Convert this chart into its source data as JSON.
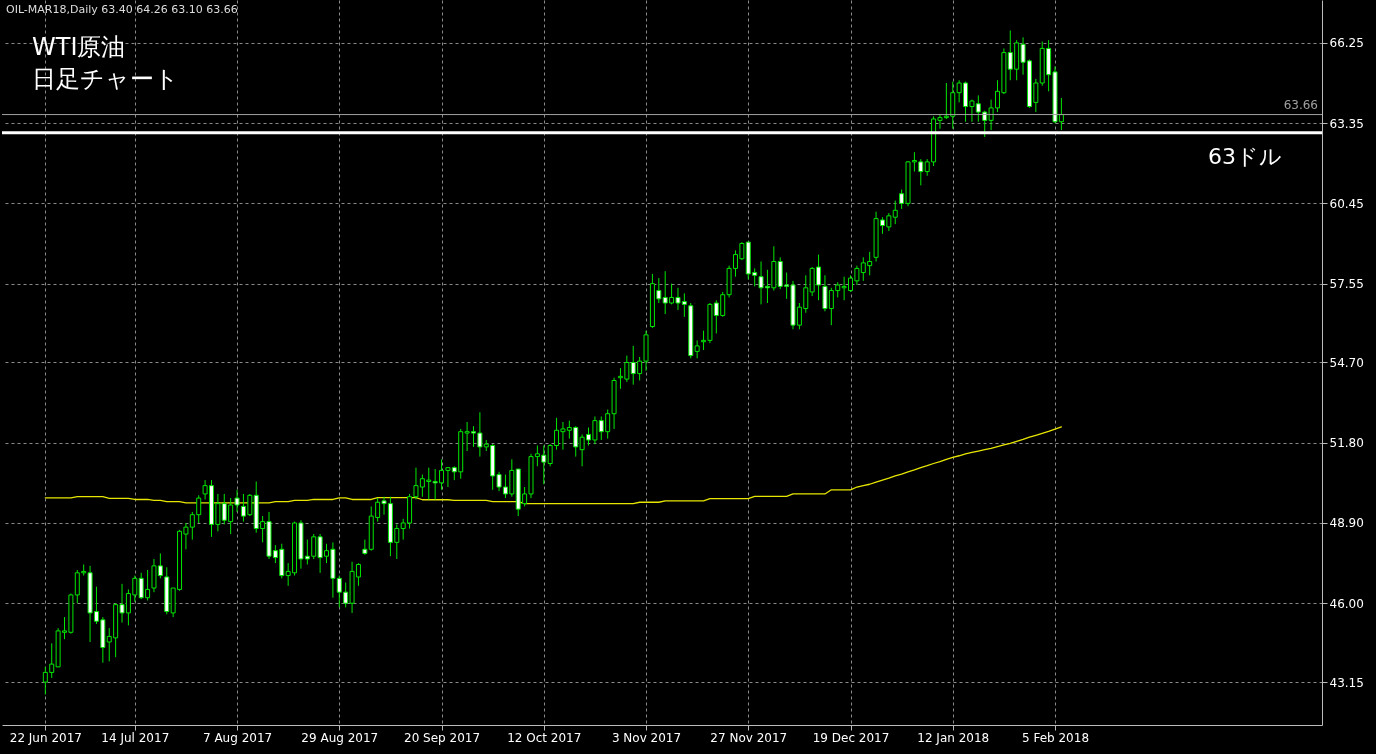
{
  "chart_data": {
    "type": "candlestick",
    "title": "WTI原油",
    "subtitle": "日足チャート",
    "annotations": [
      "OIL-MAR18,Daily 63.40 64.26 63.10 63.66"
    ],
    "color": "#00e600",
    "categories": [
      "22 Jun 2017",
      null,
      null,
      null,
      null,
      null,
      null,
      null,
      null,
      null,
      null,
      null,
      null,
      null,
      "14 Jul 2017",
      null,
      null,
      null,
      null,
      null,
      null,
      null,
      null,
      null,
      null,
      null,
      null,
      null,
      null,
      null,
      "7 Aug 2017",
      null,
      null,
      null,
      null,
      null,
      null,
      null,
      null,
      null,
      null,
      null,
      null,
      null,
      null,
      null,
      "29 Aug 2017",
      null,
      null,
      null,
      null,
      null,
      null,
      null,
      null,
      null,
      null,
      null,
      null,
      null,
      null,
      null,
      "20 Sep 2017",
      null,
      null,
      null,
      null,
      null,
      null,
      null,
      null,
      null,
      null,
      null,
      null,
      null,
      null,
      null,
      "12 Oct 2017",
      null,
      null,
      null,
      null,
      null,
      null,
      null,
      null,
      null,
      null,
      null,
      null,
      null,
      null,
      null,
      "3 Nov 2017",
      null,
      null,
      null,
      null,
      null,
      null,
      null,
      null,
      null,
      null,
      null,
      null,
      null,
      null,
      null,
      "27 Nov 2017",
      null,
      null,
      null,
      null,
      null,
      null,
      null,
      null,
      null,
      null,
      null,
      null,
      null,
      null,
      null,
      "19 Dec 2017",
      null,
      null,
      null,
      null,
      null,
      null,
      null,
      null,
      null,
      null,
      null,
      null,
      null,
      null,
      null,
      "12 Jan 2018",
      null,
      null,
      null,
      null,
      null,
      null,
      null,
      null,
      null,
      null,
      null,
      null,
      null,
      null,
      null,
      "5 Feb 2018",
      null
    ],
    "ohlc": [
      [
        43.15,
        43.7,
        42.7,
        43.5
      ],
      [
        43.5,
        44.55,
        43.3,
        43.8
      ],
      [
        43.7,
        45.1,
        43.7,
        45.0
      ],
      [
        44.95,
        45.5,
        44.7,
        45.0
      ],
      [
        44.95,
        46.35,
        44.9,
        46.3
      ],
      [
        46.3,
        47.2,
        46.0,
        47.1
      ],
      [
        47.1,
        47.4,
        47.0,
        47.15
      ],
      [
        47.1,
        47.35,
        44.6,
        45.65
      ],
      [
        45.7,
        46.6,
        45.25,
        45.35
      ],
      [
        45.4,
        45.5,
        43.85,
        44.4
      ],
      [
        44.6,
        45.1,
        43.9,
        44.8
      ],
      [
        44.75,
        46.0,
        44.05,
        45.95
      ],
      [
        45.95,
        46.7,
        45.3,
        45.65
      ],
      [
        45.65,
        46.5,
        45.2,
        46.35
      ],
      [
        46.3,
        47.0,
        46.05,
        46.9
      ],
      [
        46.9,
        47.1,
        46.15,
        46.2
      ],
      [
        46.2,
        47.2,
        46.1,
        46.5
      ],
      [
        46.55,
        47.6,
        46.4,
        47.35
      ],
      [
        47.35,
        47.8,
        46.9,
        47.0
      ],
      [
        46.95,
        47.3,
        45.6,
        45.7
      ],
      [
        45.65,
        46.55,
        45.5,
        46.55
      ],
      [
        46.5,
        48.65,
        46.45,
        48.6
      ],
      [
        48.5,
        48.9,
        47.95,
        48.75
      ],
      [
        48.75,
        49.3,
        48.3,
        49.2
      ],
      [
        49.2,
        49.9,
        48.9,
        49.8
      ],
      [
        49.95,
        50.45,
        49.75,
        50.25
      ],
      [
        50.25,
        50.45,
        48.4,
        48.85
      ],
      [
        48.85,
        49.95,
        48.6,
        49.6
      ],
      [
        49.6,
        49.95,
        48.85,
        49.0
      ],
      [
        48.95,
        49.8,
        48.5,
        49.55
      ],
      [
        49.8,
        50.1,
        49.3,
        49.55
      ],
      [
        49.5,
        49.95,
        48.95,
        49.15
      ],
      [
        49.2,
        49.95,
        49.15,
        49.9
      ],
      [
        49.9,
        50.4,
        48.55,
        48.7
      ],
      [
        48.7,
        49.15,
        48.2,
        48.95
      ],
      [
        48.95,
        49.3,
        47.6,
        47.7
      ],
      [
        47.9,
        48.1,
        47.45,
        47.65
      ],
      [
        47.95,
        48.15,
        46.9,
        47.0
      ],
      [
        47.0,
        47.45,
        46.63,
        47.15
      ],
      [
        47.1,
        48.95,
        47.0,
        48.9
      ],
      [
        48.9,
        49.0,
        47.25,
        47.6
      ],
      [
        47.7,
        48.3,
        47.4,
        47.6
      ],
      [
        47.7,
        48.5,
        47.6,
        48.4
      ],
      [
        48.4,
        48.5,
        47.1,
        47.65
      ],
      [
        47.7,
        48.15,
        47.45,
        47.9
      ],
      [
        47.95,
        48.2,
        46.2,
        46.9
      ],
      [
        46.9,
        47.0,
        45.85,
        46.4
      ],
      [
        46.4,
        46.75,
        45.85,
        46.0
      ],
      [
        46.0,
        47.5,
        45.65,
        47.15
      ],
      [
        46.95,
        47.45,
        46.63,
        47.4
      ],
      [
        47.95,
        48.3,
        47.75,
        47.8
      ],
      [
        47.95,
        49.5,
        47.9,
        49.15
      ],
      [
        49.1,
        49.8,
        48.95,
        49.65
      ],
      [
        49.7,
        49.85,
        49.2,
        49.6
      ],
      [
        49.6,
        49.85,
        47.7,
        48.2
      ],
      [
        48.2,
        48.85,
        47.6,
        48.7
      ],
      [
        48.7,
        49.05,
        48.3,
        48.9
      ],
      [
        48.9,
        49.95,
        48.7,
        49.85
      ],
      [
        49.85,
        50.9,
        49.75,
        50.25
      ],
      [
        50.2,
        50.65,
        49.85,
        50.5
      ],
      [
        50.4,
        50.9,
        49.75,
        50.45
      ],
      [
        50.4,
        50.85,
        49.75,
        50.35
      ],
      [
        50.35,
        51.2,
        50.1,
        50.8
      ],
      [
        50.8,
        50.9,
        50.2,
        50.9
      ],
      [
        50.9,
        50.95,
        50.45,
        50.75
      ],
      [
        50.75,
        52.3,
        50.5,
        52.2
      ],
      [
        52.15,
        52.55,
        51.5,
        52.2
      ],
      [
        52.2,
        52.4,
        51.65,
        52.15
      ],
      [
        52.15,
        52.9,
        51.3,
        51.65
      ],
      [
        51.65,
        51.9,
        51.5,
        51.75
      ],
      [
        51.7,
        51.75,
        50.1,
        50.6
      ],
      [
        50.65,
        50.75,
        50.05,
        50.2
      ],
      [
        50.2,
        50.65,
        49.8,
        49.95
      ],
      [
        49.95,
        51.2,
        49.85,
        50.8
      ],
      [
        50.85,
        50.85,
        49.15,
        49.4
      ],
      [
        49.6,
        50.2,
        49.5,
        49.95
      ],
      [
        49.95,
        51.4,
        49.8,
        51.3
      ],
      [
        51.3,
        51.7,
        50.95,
        51.4
      ],
      [
        51.35,
        51.7,
        50.3,
        51.1
      ],
      [
        51.05,
        51.75,
        50.95,
        51.7
      ],
      [
        51.7,
        52.7,
        51.55,
        52.25
      ],
      [
        52.2,
        52.55,
        51.55,
        52.3
      ],
      [
        52.25,
        52.6,
        51.95,
        52.35
      ],
      [
        52.35,
        52.4,
        51.3,
        51.65
      ],
      [
        51.55,
        52.1,
        50.95,
        52.0
      ],
      [
        52.1,
        52.35,
        51.7,
        51.9
      ],
      [
        51.9,
        52.75,
        51.75,
        52.6
      ],
      [
        52.6,
        52.75,
        51.9,
        52.2
      ],
      [
        52.2,
        53.0,
        51.95,
        52.85
      ],
      [
        52.85,
        54.15,
        52.3,
        54.05
      ],
      [
        54.15,
        54.5,
        53.75,
        54.2
      ],
      [
        54.1,
        54.95,
        54.0,
        54.7
      ],
      [
        54.7,
        55.3,
        53.9,
        54.3
      ],
      [
        54.3,
        54.9,
        54.05,
        54.75
      ],
      [
        54.75,
        55.85,
        54.4,
        55.7
      ],
      [
        56.0,
        57.9,
        55.95,
        57.55
      ],
      [
        57.3,
        57.75,
        56.85,
        57.0
      ],
      [
        57.05,
        58.0,
        56.45,
        56.85
      ],
      [
        56.85,
        57.55,
        56.8,
        57.05
      ],
      [
        57.05,
        57.4,
        56.6,
        56.85
      ],
      [
        56.9,
        57.2,
        56.35,
        56.8
      ],
      [
        56.75,
        56.85,
        54.85,
        54.95
      ],
      [
        55.1,
        55.5,
        54.85,
        55.3
      ],
      [
        55.45,
        55.85,
        55.15,
        55.5
      ],
      [
        55.5,
        56.85,
        55.4,
        56.8
      ],
      [
        56.85,
        56.95,
        55.75,
        56.4
      ],
      [
        56.4,
        57.25,
        56.35,
        57.15
      ],
      [
        57.15,
        58.2,
        57.05,
        58.1
      ],
      [
        58.1,
        58.75,
        57.8,
        58.6
      ],
      [
        58.45,
        59.05,
        58.4,
        59.0
      ],
      [
        59.05,
        59.05,
        57.7,
        57.9
      ],
      [
        57.95,
        58.1,
        57.45,
        57.85
      ],
      [
        57.8,
        58.35,
        56.8,
        57.4
      ],
      [
        57.45,
        58.05,
        56.85,
        57.4
      ],
      [
        57.4,
        58.9,
        57.3,
        58.35
      ],
      [
        58.35,
        58.5,
        57.35,
        57.45
      ],
      [
        57.5,
        57.95,
        57.0,
        57.45
      ],
      [
        57.5,
        57.65,
        55.9,
        56.05
      ],
      [
        56.05,
        56.85,
        55.9,
        56.7
      ],
      [
        56.65,
        57.85,
        56.5,
        57.4
      ],
      [
        57.25,
        58.15,
        57.1,
        58.1
      ],
      [
        58.15,
        58.6,
        56.95,
        57.5
      ],
      [
        57.45,
        57.85,
        56.55,
        56.65
      ],
      [
        56.65,
        57.4,
        56.05,
        57.3
      ],
      [
        57.3,
        57.6,
        57.05,
        57.5
      ],
      [
        57.4,
        57.8,
        56.95,
        57.45
      ],
      [
        57.3,
        57.85,
        57.25,
        57.75
      ],
      [
        57.65,
        58.2,
        57.5,
        58.1
      ],
      [
        57.95,
        58.5,
        57.65,
        58.3
      ],
      [
        58.2,
        58.7,
        57.85,
        58.35
      ],
      [
        58.5,
        60.15,
        58.35,
        59.9
      ],
      [
        59.85,
        59.95,
        59.35,
        59.65
      ],
      [
        59.6,
        60.1,
        59.45,
        60.0
      ],
      [
        59.95,
        60.55,
        59.7,
        60.2
      ],
      [
        60.8,
        60.95,
        60.25,
        60.45
      ],
      [
        60.45,
        61.98,
        60.35,
        61.95
      ],
      [
        61.95,
        62.3,
        61.6,
        62.0
      ],
      [
        61.95,
        62.05,
        61.1,
        61.6
      ],
      [
        61.6,
        62.05,
        61.45,
        61.95
      ],
      [
        61.95,
        63.6,
        61.8,
        63.5
      ],
      [
        63.45,
        63.65,
        63.15,
        63.55
      ],
      [
        63.55,
        64.8,
        63.5,
        63.6
      ],
      [
        63.6,
        64.85,
        63.15,
        64.45
      ],
      [
        64.45,
        64.9,
        64.1,
        64.8
      ],
      [
        64.8,
        64.85,
        63.4,
        63.95
      ],
      [
        63.95,
        64.2,
        63.4,
        64.15
      ],
      [
        64.05,
        64.35,
        63.4,
        63.75
      ],
      [
        63.75,
        63.8,
        62.85,
        63.45
      ],
      [
        63.45,
        64.2,
        63.1,
        63.9
      ],
      [
        63.9,
        64.9,
        63.75,
        64.5
      ],
      [
        64.45,
        66.05,
        64.4,
        65.9
      ],
      [
        65.9,
        66.7,
        64.9,
        65.3
      ],
      [
        65.3,
        66.35,
        64.9,
        66.25
      ],
      [
        66.2,
        66.45,
        65.1,
        65.55
      ],
      [
        65.6,
        65.65,
        63.9,
        63.95
      ],
      [
        64.1,
        64.95,
        63.75,
        64.8
      ],
      [
        64.8,
        66.3,
        64.7,
        66.05
      ],
      [
        66.05,
        66.35,
        64.5,
        65.1
      ],
      [
        65.2,
        65.4,
        63.35,
        63.4
      ],
      [
        63.4,
        64.26,
        63.1,
        63.66
      ]
    ],
    "series": [
      {
        "type": "line",
        "color": "#e6e600",
        "values": [
          49.81,
          49.81,
          49.81,
          49.81,
          49.81,
          49.85,
          49.85,
          49.85,
          49.85,
          49.85,
          49.79,
          49.79,
          49.79,
          49.79,
          49.75,
          49.75,
          49.75,
          49.72,
          49.72,
          49.67,
          49.67,
          49.67,
          49.63,
          49.63,
          49.63,
          49.63,
          49.63,
          49.63,
          49.63,
          49.63,
          49.63,
          49.63,
          49.63,
          49.63,
          49.63,
          49.63,
          49.67,
          49.67,
          49.67,
          49.72,
          49.72,
          49.72,
          49.75,
          49.75,
          49.75,
          49.75,
          49.81,
          49.81,
          49.75,
          49.75,
          49.75,
          49.75,
          49.82,
          49.82,
          49.82,
          49.82,
          49.82,
          49.82,
          49.82,
          49.74,
          49.74,
          49.74,
          49.74,
          49.74,
          49.72,
          49.72,
          49.72,
          49.72,
          49.72,
          49.72,
          49.67,
          49.67,
          49.67,
          49.67,
          49.67,
          49.6,
          49.6,
          49.6,
          49.6,
          49.6,
          49.6,
          49.6,
          49.6,
          49.6,
          49.6,
          49.6,
          49.6,
          49.6,
          49.6,
          49.6,
          49.6,
          49.6,
          49.6,
          49.65,
          49.65,
          49.65,
          49.65,
          49.7,
          49.7,
          49.7,
          49.7,
          49.7,
          49.7,
          49.7,
          49.78,
          49.78,
          49.78,
          49.78,
          49.78,
          49.78,
          49.78,
          49.86,
          49.86,
          49.86,
          49.86,
          49.86,
          49.86,
          49.95,
          49.95,
          49.95,
          49.95,
          49.95,
          49.95,
          50.1,
          50.1,
          50.1,
          50.1,
          50.2,
          50.25,
          50.3,
          50.38,
          50.45,
          50.52,
          50.6,
          50.67,
          50.75,
          50.82,
          50.9,
          50.97,
          51.05,
          51.12,
          51.2,
          51.27,
          51.33,
          51.4,
          51.45,
          51.5,
          51.55,
          51.6,
          51.66,
          51.72,
          51.78,
          51.85,
          51.92,
          52.0,
          52.07,
          52.14,
          52.21,
          52.29,
          52.37
        ]
      }
    ],
    "ylim": [
      41.6,
      67.8
    ],
    "yticks": [
      43.15,
      {
        "value": 46,
        "label": "46.00"
      },
      {
        "value": 48.9,
        "label": "48.90"
      },
      {
        "value": 51.8,
        "label": "51.80"
      },
      {
        "value": 54.7,
        "label": "54.70"
      },
      57.55,
      60.45,
      63.35,
      66.25
    ],
    "grid": true,
    "ref_lines": [
      {
        "axis": "y",
        "value": 63.66,
        "label": "63.66",
        "color": "#a0a0a0"
      },
      {
        "axis": "y",
        "value": 63,
        "label": "63ドル",
        "color": "#ffffff"
      }
    ]
  }
}
